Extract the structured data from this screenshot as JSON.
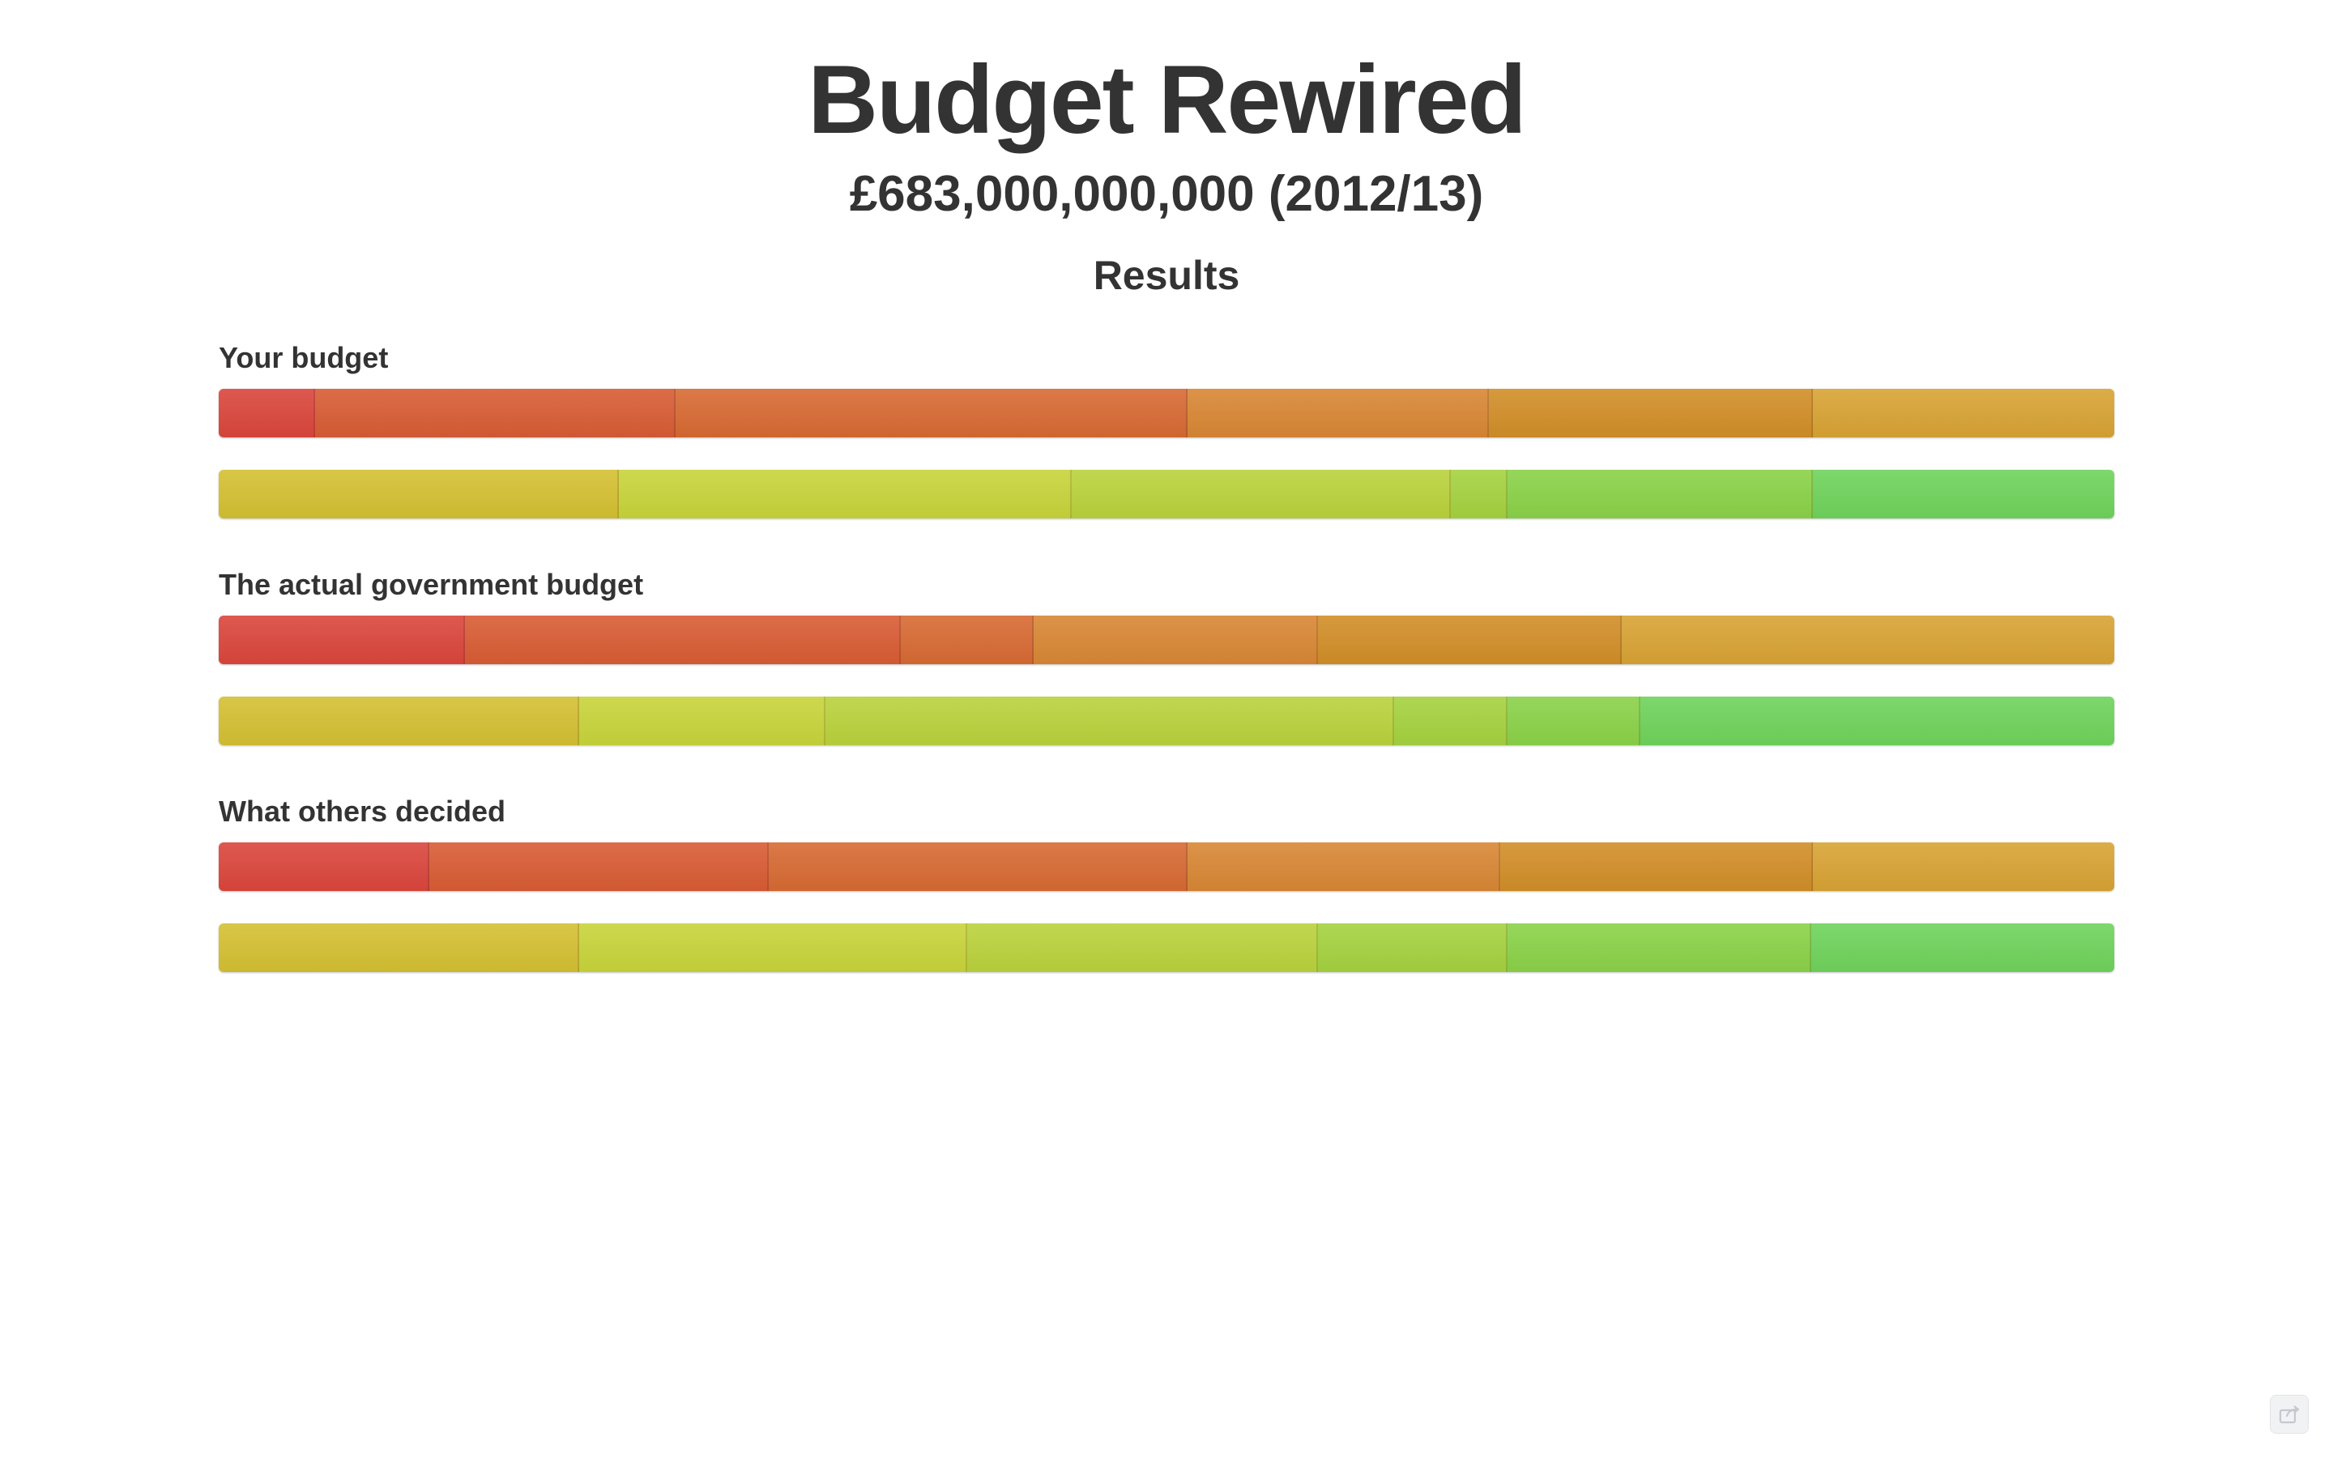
{
  "header": {
    "title": "Budget Rewired",
    "subtitle": "£683,000,000,000 (2012/13)",
    "results_heading": "Results"
  },
  "colors": {
    "spending_row": [
      "#da463c",
      "#d85c34",
      "#d76a33",
      "#d88734",
      "#d18e28",
      "#d8a334"
    ],
    "second_row": [
      "#d4c032",
      "#c8d43a",
      "#bad23c",
      "#a5d23f",
      "#8ad248",
      "#6fd35b"
    ]
  },
  "sections": [
    {
      "label": "Your budget",
      "bars": [
        {
          "fractions": [
            0.051,
            0.19,
            0.27,
            0.159,
            0.171,
            0.159
          ]
        },
        {
          "fractions": [
            0.211,
            0.239,
            0.2,
            0.03,
            0.161,
            0.159
          ]
        }
      ]
    },
    {
      "label": "The actual government budget",
      "bars": [
        {
          "fractions": [
            0.13,
            0.23,
            0.07,
            0.15,
            0.16,
            0.26
          ]
        },
        {
          "fractions": [
            0.19,
            0.13,
            0.3,
            0.06,
            0.07,
            0.25
          ]
        }
      ]
    },
    {
      "label": "What others decided",
      "bars": [
        {
          "fractions": [
            0.111,
            0.179,
            0.221,
            0.165,
            0.165,
            0.159
          ]
        },
        {
          "fractions": [
            0.19,
            0.205,
            0.185,
            0.1,
            0.16,
            0.16
          ]
        }
      ]
    }
  ],
  "share_button_icon": "share-icon"
}
